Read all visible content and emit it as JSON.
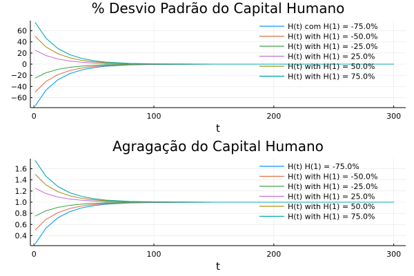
{
  "chart_data": [
    {
      "type": "line",
      "title": "% Desvio Padrão do Capital Humano",
      "xlabel": "t",
      "ylabel": "",
      "xlim": [
        -3,
        310
      ],
      "ylim": [
        -78,
        78
      ],
      "xticks": [
        0,
        100,
        200,
        300
      ],
      "xtick_labels": [
        "0",
        "100",
        "200",
        "300"
      ],
      "yticks": [
        -60,
        -40,
        -20,
        0,
        20,
        40,
        60
      ],
      "ytick_labels": [
        "−60",
        "−40",
        "−20",
        "0",
        "20",
        "40",
        "60"
      ],
      "grid": true,
      "legend_position": "top-right",
      "x": [
        1,
        10,
        20,
        30,
        40,
        50,
        60,
        80,
        100,
        120,
        150,
        180,
        200,
        250,
        300
      ],
      "series": [
        {
          "name": "H(t) com H(1) = -75.0%",
          "color": "#009af9",
          "values": [
            -75.0,
            -46.5,
            -28.0,
            -16.9,
            -10.2,
            -6.1,
            -3.7,
            -1.4,
            -0.5,
            -0.2,
            0.0,
            0.0,
            0.0,
            0.0,
            0.0
          ]
        },
        {
          "name": "H(t) with H(1) = -50.0%",
          "color": "#e26f46",
          "values": [
            -50.0,
            -31.0,
            -18.7,
            -11.3,
            -6.8,
            -4.1,
            -2.5,
            -0.9,
            -0.3,
            -0.1,
            0.0,
            0.0,
            0.0,
            0.0,
            0.0
          ]
        },
        {
          "name": "H(t) with H(1) = -25.0%",
          "color": "#3da44d",
          "values": [
            -25.0,
            -15.5,
            -9.3,
            -5.6,
            -3.4,
            -2.0,
            -1.2,
            -0.5,
            -0.2,
            -0.1,
            0.0,
            0.0,
            0.0,
            0.0,
            0.0
          ]
        },
        {
          "name": "H(t) with H(1) = 25.0%",
          "color": "#c271d2",
          "values": [
            25.0,
            15.5,
            9.3,
            5.6,
            3.4,
            2.0,
            1.2,
            0.5,
            0.2,
            0.1,
            0.0,
            0.0,
            0.0,
            0.0,
            0.0
          ]
        },
        {
          "name": "H(t) with H(1) = 50.0%",
          "color": "#ac8d18",
          "values": [
            50.0,
            31.0,
            18.7,
            11.3,
            6.8,
            4.1,
            2.5,
            0.9,
            0.3,
            0.1,
            0.0,
            0.0,
            0.0,
            0.0,
            0.0
          ]
        },
        {
          "name": "H(t) with H(1) = 75.0%",
          "color": "#00a9ad",
          "values": [
            75.0,
            46.5,
            28.0,
            16.9,
            10.2,
            6.1,
            3.7,
            1.4,
            0.5,
            0.2,
            0.0,
            0.0,
            0.0,
            0.0,
            0.0
          ]
        }
      ]
    },
    {
      "type": "line",
      "title": "Agragação do Capital Humano",
      "xlabel": "t",
      "ylabel": "",
      "xlim": [
        -3,
        310
      ],
      "ylim": [
        0.22,
        1.78
      ],
      "xticks": [
        0,
        100,
        200,
        300
      ],
      "xtick_labels": [
        "0",
        "100",
        "200",
        "300"
      ],
      "yticks": [
        0.4,
        0.6,
        0.8,
        1.0,
        1.2,
        1.4,
        1.6
      ],
      "ytick_labels": [
        "0.4",
        "0.6",
        "0.8",
        "1.0",
        "1.2",
        "1.4",
        "1.6"
      ],
      "grid": true,
      "legend_position": "top-right",
      "x": [
        1,
        10,
        20,
        30,
        40,
        50,
        60,
        80,
        100,
        120,
        150,
        180,
        200,
        250,
        300
      ],
      "series": [
        {
          "name": "H(t) H(1) = -75.0%",
          "color": "#009af9",
          "values": [
            0.25,
            0.535,
            0.72,
            0.831,
            0.898,
            0.939,
            0.963,
            0.986,
            0.995,
            0.998,
            1.0,
            1.0,
            1.0,
            1.0,
            1.0
          ]
        },
        {
          "name": "H(t) with H(1) = -50.0%",
          "color": "#e26f46",
          "values": [
            0.5,
            0.69,
            0.813,
            0.887,
            0.932,
            0.959,
            0.975,
            0.991,
            0.997,
            0.999,
            1.0,
            1.0,
            1.0,
            1.0,
            1.0
          ]
        },
        {
          "name": "H(t) with H(1) = -25.0%",
          "color": "#3da44d",
          "values": [
            0.75,
            0.845,
            0.907,
            0.944,
            0.966,
            0.98,
            0.988,
            0.995,
            0.998,
            0.999,
            1.0,
            1.0,
            1.0,
            1.0,
            1.0
          ]
        },
        {
          "name": "H(t) with H(1) = 25.0%",
          "color": "#c271d2",
          "values": [
            1.25,
            1.155,
            1.093,
            1.056,
            1.034,
            1.02,
            1.012,
            1.005,
            1.002,
            1.001,
            1.0,
            1.0,
            1.0,
            1.0,
            1.0
          ]
        },
        {
          "name": "H(t) with H(1) = 50.0%",
          "color": "#ac8d18",
          "values": [
            1.5,
            1.31,
            1.187,
            1.113,
            1.068,
            1.041,
            1.025,
            1.009,
            1.003,
            1.001,
            1.0,
            1.0,
            1.0,
            1.0,
            1.0
          ]
        },
        {
          "name": "H(t) with H(1) = 75.0%",
          "color": "#00a9ad",
          "values": [
            1.75,
            1.465,
            1.28,
            1.169,
            1.102,
            1.061,
            1.037,
            1.014,
            1.005,
            1.002,
            1.0,
            1.0,
            1.0,
            1.0,
            1.0
          ]
        }
      ]
    }
  ]
}
